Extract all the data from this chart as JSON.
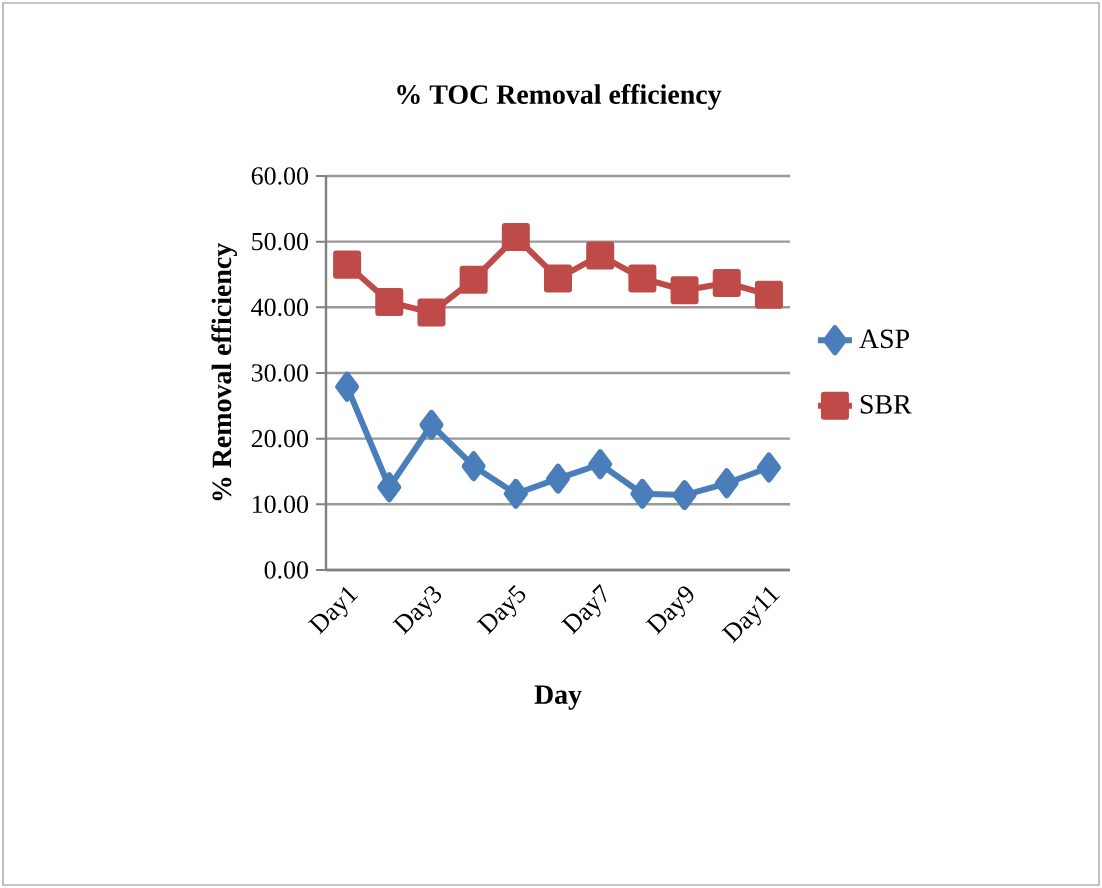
{
  "chart_data": {
    "type": "line",
    "title": "% TOC Removal efficiency",
    "xlabel": "Day",
    "ylabel": "% Removal efficiency",
    "categories": [
      "Day1",
      null,
      "Day3",
      null,
      "Day5",
      null,
      "Day7",
      null,
      "Day9",
      null,
      "Day11"
    ],
    "series": [
      {
        "name": "ASP",
        "color": "#4a7ebb",
        "marker": "diamond",
        "values": [
          27.9,
          12.6,
          22.1,
          15.8,
          11.6,
          13.9,
          16.1,
          11.6,
          11.4,
          13.2,
          15.6
        ]
      },
      {
        "name": "SBR",
        "color": "#be4b48",
        "marker": "square",
        "values": [
          46.5,
          40.8,
          39.2,
          44.2,
          50.7,
          44.4,
          47.9,
          44.4,
          42.6,
          43.7,
          41.9
        ]
      }
    ],
    "ylim": [
      0,
      60
    ],
    "yticks": [
      {
        "value": 0,
        "label": "0.00"
      },
      {
        "value": 10,
        "label": "10.00"
      },
      {
        "value": 20,
        "label": "20.00"
      },
      {
        "value": 30,
        "label": "30.00"
      },
      {
        "value": 40,
        "label": "40.00"
      },
      {
        "value": 50,
        "label": "50.00"
      },
      {
        "value": 60,
        "label": "60.00"
      }
    ],
    "grid": "y",
    "legend": "right",
    "line_style": "solid"
  }
}
